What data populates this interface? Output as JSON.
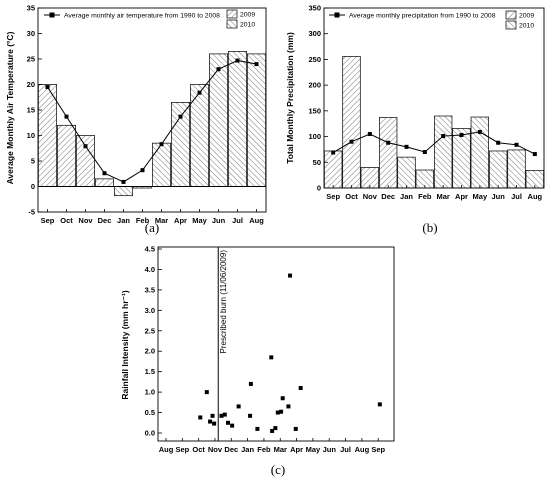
{
  "chart_data": [
    {
      "type": "bar",
      "panel_label": "(a)",
      "categories": [
        "Sep",
        "Oct",
        "Nov",
        "Dec",
        "Jan",
        "Feb",
        "Mar",
        "Apr",
        "May",
        "Jun",
        "Jul",
        "Aug"
      ],
      "series": [
        {
          "name": "2009",
          "kind": "bar",
          "pattern": "forward-hatch",
          "values": [
            20,
            12,
            10,
            1.5,
            null,
            null,
            null,
            null,
            null,
            null,
            null,
            null
          ]
        },
        {
          "name": "2010",
          "kind": "bar",
          "pattern": "back-hatch",
          "values": [
            null,
            null,
            null,
            null,
            -1.8,
            -0.3,
            8.5,
            16.5,
            20,
            26,
            26.5,
            26
          ]
        },
        {
          "name": "Average monthly air temperature from 1990 to 2008",
          "kind": "line",
          "values": [
            19.5,
            13.7,
            7.9,
            2.6,
            0.9,
            3.2,
            8.3,
            13.7,
            18.4,
            23,
            24.7,
            24
          ]
        }
      ],
      "xlabel": "",
      "ylabel": "Average Monthly Air Temperature (°C)",
      "ylim": [
        -5,
        35
      ],
      "yticks": [
        "-5",
        "0",
        "5",
        "10",
        "15",
        "20",
        "25",
        "30",
        "35"
      ],
      "legend_position": "top"
    },
    {
      "type": "bar",
      "panel_label": "(b)",
      "categories": [
        "Sep",
        "Oct",
        "Nov",
        "Dec",
        "Jan",
        "Feb",
        "Mar",
        "Apr",
        "May",
        "Jun",
        "Jul",
        "Aug"
      ],
      "series": [
        {
          "name": "2009",
          "kind": "bar",
          "pattern": "forward-hatch",
          "values": [
            72,
            256,
            40,
            137,
            null,
            null,
            null,
            null,
            null,
            null,
            null,
            null
          ]
        },
        {
          "name": "2010",
          "kind": "bar",
          "pattern": "back-hatch",
          "values": [
            null,
            null,
            null,
            null,
            60,
            35,
            140,
            116,
            138,
            72,
            74,
            34
          ]
        },
        {
          "name": "Average monthly precipitation from 1990 to 2008",
          "kind": "line",
          "values": [
            69,
            90,
            105,
            88,
            80,
            70,
            101,
            103,
            109,
            88,
            84,
            66
          ]
        }
      ],
      "xlabel": "",
      "ylabel": "Total Monthly Precipitation (mm)",
      "ylim": [
        0,
        350
      ],
      "yticks": [
        "0",
        "50",
        "100",
        "150",
        "200",
        "250",
        "300",
        "350"
      ],
      "legend_position": "top"
    },
    {
      "type": "scatter",
      "panel_label": "(c)",
      "xlabel": "",
      "ylabel": "Rainfall Intensity (mm hr⁻¹)",
      "ylim": [
        0,
        4.5
      ],
      "yticks": [
        "0.0",
        "0.5",
        "1.0",
        "1.5",
        "2.0",
        "2.5",
        "3.0",
        "3.5",
        "4.0",
        "4.5"
      ],
      "xticks": [
        "Aug",
        "Sep",
        "Oct",
        "Nov",
        "Dec",
        "Jan",
        "Feb",
        "Mar",
        "Apr",
        "May",
        "Jun",
        "Jul",
        "Aug",
        "Sep"
      ],
      "xlim": [
        0,
        13.6
      ],
      "annotation": {
        "text": "Prescribed burn (11/06/2009)",
        "x": 3.2
      },
      "points": [
        {
          "x": 2.1,
          "y": 0.38
        },
        {
          "x": 2.5,
          "y": 1.0
        },
        {
          "x": 2.7,
          "y": 0.28
        },
        {
          "x": 2.85,
          "y": 0.42
        },
        {
          "x": 2.95,
          "y": 0.23
        },
        {
          "x": 3.4,
          "y": 0.42
        },
        {
          "x": 3.6,
          "y": 0.45
        },
        {
          "x": 3.8,
          "y": 0.25
        },
        {
          "x": 4.05,
          "y": 0.18
        },
        {
          "x": 4.45,
          "y": 0.65
        },
        {
          "x": 5.15,
          "y": 0.42
        },
        {
          "x": 5.2,
          "y": 1.2
        },
        {
          "x": 5.6,
          "y": 0.1
        },
        {
          "x": 6.45,
          "y": 1.85
        },
        {
          "x": 6.5,
          "y": 0.05
        },
        {
          "x": 6.7,
          "y": 0.12
        },
        {
          "x": 6.85,
          "y": 0.5
        },
        {
          "x": 7.05,
          "y": 0.52
        },
        {
          "x": 7.15,
          "y": 0.85
        },
        {
          "x": 7.5,
          "y": 0.65
        },
        {
          "x": 7.6,
          "y": 3.85
        },
        {
          "x": 7.95,
          "y": 0.1
        },
        {
          "x": 8.25,
          "y": 1.1
        },
        {
          "x": 13.1,
          "y": 0.7
        }
      ]
    }
  ]
}
